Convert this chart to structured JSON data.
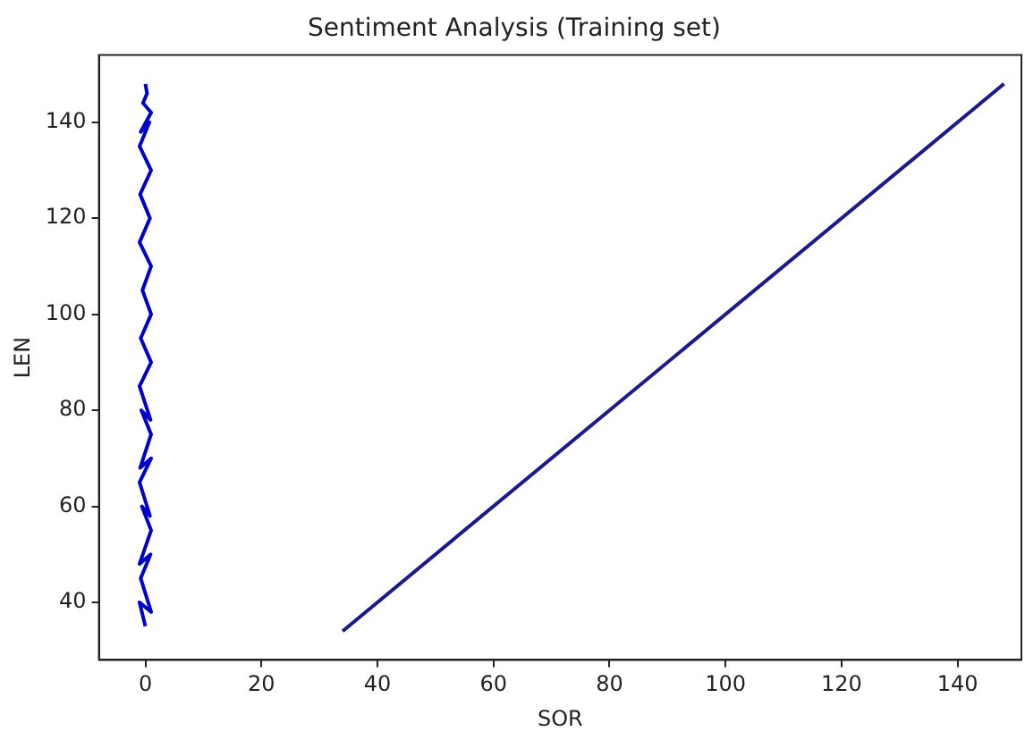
{
  "chart_data": {
    "type": "line",
    "title": "Sentiment Analysis (Training set)",
    "xlabel": "SOR",
    "ylabel": "LEN",
    "xlim": [
      -8,
      151
    ],
    "ylim": [
      28,
      154
    ],
    "xticks": [
      0,
      20,
      40,
      60,
      80,
      100,
      120,
      140
    ],
    "yticks": [
      40,
      60,
      80,
      100,
      120,
      140
    ],
    "grid": false,
    "legend": false,
    "marker": "none",
    "line_style": "solid",
    "series": [
      {
        "color": "#0000cc",
        "x": [
          0,
          -1,
          1,
          -0.8,
          0.9,
          -1,
          1,
          -0.6,
          0.8,
          -1,
          1,
          -0.9,
          1,
          -0.7,
          0.9,
          -1,
          1,
          -0.8,
          1,
          -0.5,
          1,
          -1,
          0.8,
          -0.9,
          1,
          -1,
          0.7,
          -0.8,
          1,
          -0.4,
          0.3,
          0
        ],
        "values": [
          35,
          40,
          38,
          45,
          50,
          48,
          55,
          60,
          58,
          65,
          70,
          68,
          75,
          80,
          78,
          85,
          90,
          95,
          100,
          105,
          110,
          115,
          120,
          125,
          130,
          135,
          140,
          138,
          142,
          144,
          146,
          148
        ]
      },
      {
        "color": "#1a1a8c",
        "x": [
          34,
          148
        ],
        "values": [
          34,
          148
        ]
      }
    ]
  }
}
